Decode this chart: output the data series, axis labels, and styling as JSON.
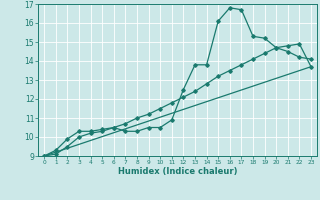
{
  "title": "",
  "xlabel": "Humidex (Indice chaleur)",
  "bg_color": "#cce8e8",
  "grid_color": "#ffffff",
  "line_color": "#1a7a6e",
  "xlim": [
    -0.5,
    23.5
  ],
  "ylim": [
    9,
    17
  ],
  "xticks": [
    0,
    1,
    2,
    3,
    4,
    5,
    6,
    7,
    8,
    9,
    10,
    11,
    12,
    13,
    14,
    15,
    16,
    17,
    18,
    19,
    20,
    21,
    22,
    23
  ],
  "yticks": [
    9,
    10,
    11,
    12,
    13,
    14,
    15,
    16,
    17
  ],
  "series1_x": [
    0,
    1,
    2,
    3,
    4,
    5,
    6,
    7,
    8,
    9,
    10,
    11,
    12,
    13,
    14,
    15,
    16,
    17,
    18,
    19,
    20,
    21,
    22,
    23
  ],
  "series1_y": [
    9.0,
    9.3,
    9.9,
    10.3,
    10.3,
    10.4,
    10.5,
    10.3,
    10.3,
    10.5,
    10.5,
    10.9,
    12.5,
    13.8,
    13.8,
    16.1,
    16.8,
    16.7,
    15.3,
    15.2,
    14.7,
    14.5,
    14.2,
    14.1
  ],
  "series2_x": [
    0,
    1,
    2,
    3,
    4,
    5,
    6,
    7,
    8,
    9,
    10,
    11,
    12,
    13,
    14,
    15,
    16,
    17,
    18,
    19,
    20,
    21,
    22,
    23
  ],
  "series2_y": [
    9.0,
    9.1,
    9.5,
    10.0,
    10.2,
    10.3,
    10.5,
    10.7,
    11.0,
    11.2,
    11.5,
    11.8,
    12.1,
    12.4,
    12.8,
    13.2,
    13.5,
    13.8,
    14.1,
    14.4,
    14.7,
    14.8,
    14.9,
    13.7
  ],
  "series3_x": [
    0,
    23
  ],
  "series3_y": [
    9.0,
    13.7
  ]
}
